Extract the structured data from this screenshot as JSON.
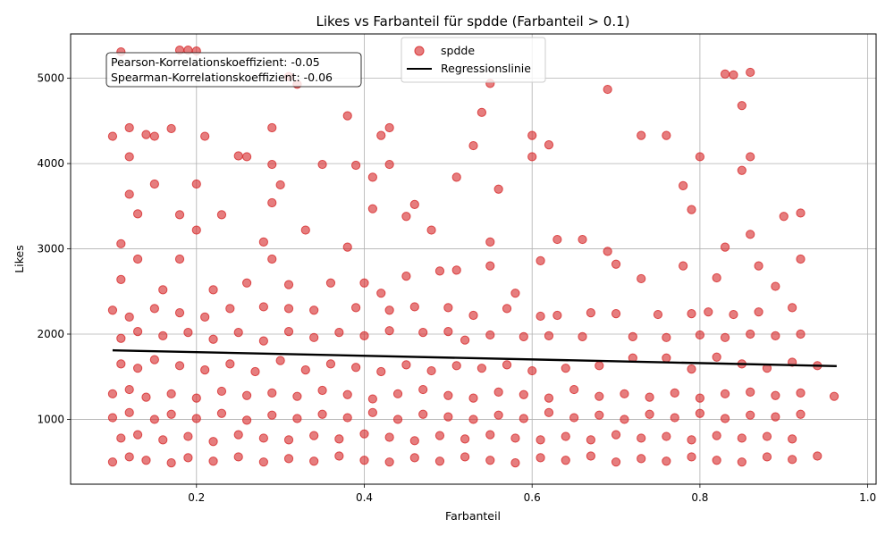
{
  "chart_data": {
    "type": "scatter",
    "title": "Likes vs Farbanteil für spdde (Farbanteil > 0.1)",
    "xlabel": "Farbanteil",
    "ylabel": "Likes",
    "xlim": [
      0.05,
      1.01
    ],
    "ylim": [
      240,
      5520
    ],
    "xticks": [
      0.2,
      0.4,
      0.6,
      0.8,
      1.0
    ],
    "xtick_labels": [
      "0.2",
      "0.4",
      "0.6",
      "0.8",
      "1.0"
    ],
    "yticks": [
      1000,
      2000,
      3000,
      4000,
      5000
    ],
    "ytick_labels": [
      "1000",
      "2000",
      "3000",
      "4000",
      "5000"
    ],
    "grid": true,
    "legend_position": "top-center",
    "series": [
      {
        "name": "spdde",
        "color": "#d62728",
        "marker": "circle",
        "points": [
          [
            0.11,
            5310
          ],
          [
            0.18,
            5330
          ],
          [
            0.19,
            5330
          ],
          [
            0.2,
            5320
          ],
          [
            0.31,
            5020
          ],
          [
            0.32,
            4930
          ],
          [
            0.55,
            4940
          ],
          [
            0.69,
            4870
          ],
          [
            0.83,
            5050
          ],
          [
            0.84,
            5040
          ],
          [
            0.86,
            5070
          ],
          [
            0.85,
            4680
          ],
          [
            0.1,
            4320
          ],
          [
            0.12,
            4420
          ],
          [
            0.14,
            4340
          ],
          [
            0.15,
            4320
          ],
          [
            0.21,
            4320
          ],
          [
            0.29,
            4420
          ],
          [
            0.38,
            4560
          ],
          [
            0.43,
            4420
          ],
          [
            0.6,
            4330
          ],
          [
            0.62,
            4220
          ],
          [
            0.73,
            4330
          ],
          [
            0.76,
            4330
          ],
          [
            0.42,
            4330
          ],
          [
            0.54,
            4600
          ],
          [
            0.12,
            4080
          ],
          [
            0.17,
            4410
          ],
          [
            0.26,
            4080
          ],
          [
            0.29,
            3990
          ],
          [
            0.3,
            3750
          ],
          [
            0.35,
            3990
          ],
          [
            0.41,
            3840
          ],
          [
            0.43,
            3990
          ],
          [
            0.53,
            4210
          ],
          [
            0.56,
            3700
          ],
          [
            0.6,
            4080
          ],
          [
            0.8,
            4080
          ],
          [
            0.85,
            3920
          ],
          [
            0.86,
            4080
          ],
          [
            0.12,
            3640
          ],
          [
            0.15,
            3760
          ],
          [
            0.2,
            3760
          ],
          [
            0.25,
            4090
          ],
          [
            0.29,
            3540
          ],
          [
            0.39,
            3980
          ],
          [
            0.46,
            3520
          ],
          [
            0.51,
            3840
          ],
          [
            0.78,
            3740
          ],
          [
            0.79,
            3460
          ],
          [
            0.11,
            3060
          ],
          [
            0.13,
            3410
          ],
          [
            0.18,
            3400
          ],
          [
            0.2,
            3220
          ],
          [
            0.23,
            3400
          ],
          [
            0.28,
            3080
          ],
          [
            0.33,
            3220
          ],
          [
            0.38,
            3020
          ],
          [
            0.41,
            3470
          ],
          [
            0.45,
            3380
          ],
          [
            0.48,
            3220
          ],
          [
            0.55,
            3080
          ],
          [
            0.63,
            3110
          ],
          [
            0.66,
            3110
          ],
          [
            0.69,
            2970
          ],
          [
            0.83,
            3020
          ],
          [
            0.86,
            3170
          ],
          [
            0.9,
            3380
          ],
          [
            0.92,
            3420
          ],
          [
            0.11,
            2640
          ],
          [
            0.13,
            2880
          ],
          [
            0.16,
            2520
          ],
          [
            0.18,
            2880
          ],
          [
            0.22,
            2520
          ],
          [
            0.26,
            2600
          ],
          [
            0.29,
            2880
          ],
          [
            0.31,
            2580
          ],
          [
            0.36,
            2600
          ],
          [
            0.4,
            2600
          ],
          [
            0.42,
            2480
          ],
          [
            0.45,
            2680
          ],
          [
            0.49,
            2740
          ],
          [
            0.51,
            2750
          ],
          [
            0.55,
            2800
          ],
          [
            0.58,
            2480
          ],
          [
            0.61,
            2860
          ],
          [
            0.7,
            2820
          ],
          [
            0.73,
            2650
          ],
          [
            0.78,
            2800
          ],
          [
            0.82,
            2660
          ],
          [
            0.87,
            2800
          ],
          [
            0.89,
            2560
          ],
          [
            0.92,
            2880
          ],
          [
            0.1,
            2280
          ],
          [
            0.12,
            2200
          ],
          [
            0.15,
            2300
          ],
          [
            0.18,
            2250
          ],
          [
            0.21,
            2200
          ],
          [
            0.24,
            2300
          ],
          [
            0.28,
            2320
          ],
          [
            0.31,
            2300
          ],
          [
            0.34,
            2280
          ],
          [
            0.39,
            2310
          ],
          [
            0.43,
            2280
          ],
          [
            0.46,
            2320
          ],
          [
            0.5,
            2310
          ],
          [
            0.53,
            2220
          ],
          [
            0.57,
            2300
          ],
          [
            0.61,
            2210
          ],
          [
            0.63,
            2220
          ],
          [
            0.67,
            2250
          ],
          [
            0.7,
            2240
          ],
          [
            0.75,
            2230
          ],
          [
            0.79,
            2240
          ],
          [
            0.81,
            2260
          ],
          [
            0.84,
            2230
          ],
          [
            0.87,
            2260
          ],
          [
            0.91,
            2310
          ],
          [
            0.11,
            1950
          ],
          [
            0.13,
            2030
          ],
          [
            0.16,
            1980
          ],
          [
            0.19,
            2020
          ],
          [
            0.22,
            1940
          ],
          [
            0.25,
            2020
          ],
          [
            0.28,
            1920
          ],
          [
            0.31,
            2030
          ],
          [
            0.34,
            1960
          ],
          [
            0.37,
            2020
          ],
          [
            0.4,
            1980
          ],
          [
            0.43,
            2040
          ],
          [
            0.47,
            2020
          ],
          [
            0.5,
            2030
          ],
          [
            0.52,
            1930
          ],
          [
            0.55,
            1990
          ],
          [
            0.59,
            1970
          ],
          [
            0.62,
            1980
          ],
          [
            0.66,
            1970
          ],
          [
            0.72,
            1970
          ],
          [
            0.76,
            1960
          ],
          [
            0.8,
            1990
          ],
          [
            0.83,
            1960
          ],
          [
            0.86,
            2000
          ],
          [
            0.89,
            1980
          ],
          [
            0.92,
            2000
          ],
          [
            0.11,
            1650
          ],
          [
            0.13,
            1600
          ],
          [
            0.15,
            1700
          ],
          [
            0.18,
            1630
          ],
          [
            0.21,
            1580
          ],
          [
            0.24,
            1650
          ],
          [
            0.27,
            1560
          ],
          [
            0.3,
            1690
          ],
          [
            0.33,
            1580
          ],
          [
            0.36,
            1650
          ],
          [
            0.39,
            1610
          ],
          [
            0.42,
            1560
          ],
          [
            0.45,
            1640
          ],
          [
            0.48,
            1570
          ],
          [
            0.51,
            1630
          ],
          [
            0.54,
            1600
          ],
          [
            0.57,
            1640
          ],
          [
            0.6,
            1570
          ],
          [
            0.64,
            1600
          ],
          [
            0.68,
            1630
          ],
          [
            0.72,
            1720
          ],
          [
            0.76,
            1720
          ],
          [
            0.79,
            1590
          ],
          [
            0.82,
            1730
          ],
          [
            0.85,
            1650
          ],
          [
            0.88,
            1600
          ],
          [
            0.91,
            1670
          ],
          [
            0.94,
            1630
          ],
          [
            0.1,
            1300
          ],
          [
            0.12,
            1350
          ],
          [
            0.14,
            1260
          ],
          [
            0.17,
            1300
          ],
          [
            0.2,
            1250
          ],
          [
            0.23,
            1330
          ],
          [
            0.26,
            1280
          ],
          [
            0.29,
            1310
          ],
          [
            0.32,
            1270
          ],
          [
            0.35,
            1340
          ],
          [
            0.38,
            1290
          ],
          [
            0.41,
            1240
          ],
          [
            0.44,
            1300
          ],
          [
            0.47,
            1350
          ],
          [
            0.5,
            1280
          ],
          [
            0.53,
            1250
          ],
          [
            0.56,
            1320
          ],
          [
            0.59,
            1290
          ],
          [
            0.62,
            1250
          ],
          [
            0.65,
            1350
          ],
          [
            0.68,
            1270
          ],
          [
            0.71,
            1300
          ],
          [
            0.74,
            1260
          ],
          [
            0.77,
            1310
          ],
          [
            0.8,
            1250
          ],
          [
            0.83,
            1300
          ],
          [
            0.86,
            1320
          ],
          [
            0.89,
            1280
          ],
          [
            0.92,
            1310
          ],
          [
            0.96,
            1270
          ],
          [
            0.1,
            1020
          ],
          [
            0.12,
            1080
          ],
          [
            0.15,
            1000
          ],
          [
            0.17,
            1060
          ],
          [
            0.2,
            1010
          ],
          [
            0.23,
            1070
          ],
          [
            0.26,
            990
          ],
          [
            0.29,
            1050
          ],
          [
            0.32,
            1010
          ],
          [
            0.35,
            1060
          ],
          [
            0.38,
            1020
          ],
          [
            0.41,
            1080
          ],
          [
            0.44,
            1000
          ],
          [
            0.47,
            1060
          ],
          [
            0.5,
            1030
          ],
          [
            0.53,
            1000
          ],
          [
            0.56,
            1050
          ],
          [
            0.59,
            1010
          ],
          [
            0.62,
            1080
          ],
          [
            0.65,
            1020
          ],
          [
            0.68,
            1050
          ],
          [
            0.71,
            1000
          ],
          [
            0.74,
            1060
          ],
          [
            0.77,
            1020
          ],
          [
            0.8,
            1070
          ],
          [
            0.83,
            1010
          ],
          [
            0.86,
            1050
          ],
          [
            0.89,
            1030
          ],
          [
            0.92,
            1060
          ],
          [
            0.11,
            780
          ],
          [
            0.13,
            820
          ],
          [
            0.16,
            760
          ],
          [
            0.19,
            800
          ],
          [
            0.22,
            740
          ],
          [
            0.25,
            820
          ],
          [
            0.28,
            780
          ],
          [
            0.31,
            760
          ],
          [
            0.34,
            810
          ],
          [
            0.37,
            770
          ],
          [
            0.4,
            830
          ],
          [
            0.43,
            790
          ],
          [
            0.46,
            750
          ],
          [
            0.49,
            810
          ],
          [
            0.52,
            770
          ],
          [
            0.55,
            820
          ],
          [
            0.58,
            780
          ],
          [
            0.61,
            760
          ],
          [
            0.64,
            800
          ],
          [
            0.67,
            760
          ],
          [
            0.7,
            820
          ],
          [
            0.73,
            780
          ],
          [
            0.76,
            800
          ],
          [
            0.79,
            760
          ],
          [
            0.82,
            810
          ],
          [
            0.85,
            780
          ],
          [
            0.88,
            800
          ],
          [
            0.91,
            770
          ],
          [
            0.1,
            500
          ],
          [
            0.12,
            560
          ],
          [
            0.14,
            520
          ],
          [
            0.17,
            490
          ],
          [
            0.19,
            550
          ],
          [
            0.22,
            510
          ],
          [
            0.25,
            560
          ],
          [
            0.28,
            500
          ],
          [
            0.31,
            540
          ],
          [
            0.34,
            510
          ],
          [
            0.37,
            570
          ],
          [
            0.4,
            520
          ],
          [
            0.43,
            500
          ],
          [
            0.46,
            550
          ],
          [
            0.49,
            510
          ],
          [
            0.52,
            560
          ],
          [
            0.55,
            520
          ],
          [
            0.58,
            490
          ],
          [
            0.61,
            550
          ],
          [
            0.64,
            520
          ],
          [
            0.67,
            570
          ],
          [
            0.7,
            500
          ],
          [
            0.73,
            540
          ],
          [
            0.76,
            510
          ],
          [
            0.79,
            560
          ],
          [
            0.82,
            520
          ],
          [
            0.85,
            500
          ],
          [
            0.88,
            560
          ],
          [
            0.91,
            530
          ],
          [
            0.94,
            570
          ]
        ]
      }
    ],
    "regression": {
      "name": "Regressionslinie",
      "color": "#000000",
      "points": [
        [
          0.1,
          1810
        ],
        [
          0.963,
          1625
        ]
      ]
    }
  },
  "legend": {
    "items": [
      "spdde",
      "Regressionslinie"
    ]
  },
  "annotation": {
    "line1": "Pearson-Korrelationskoeffizient: -0.05",
    "line2": "Spearman-Korrelationskoeffizient: -0.06"
  }
}
